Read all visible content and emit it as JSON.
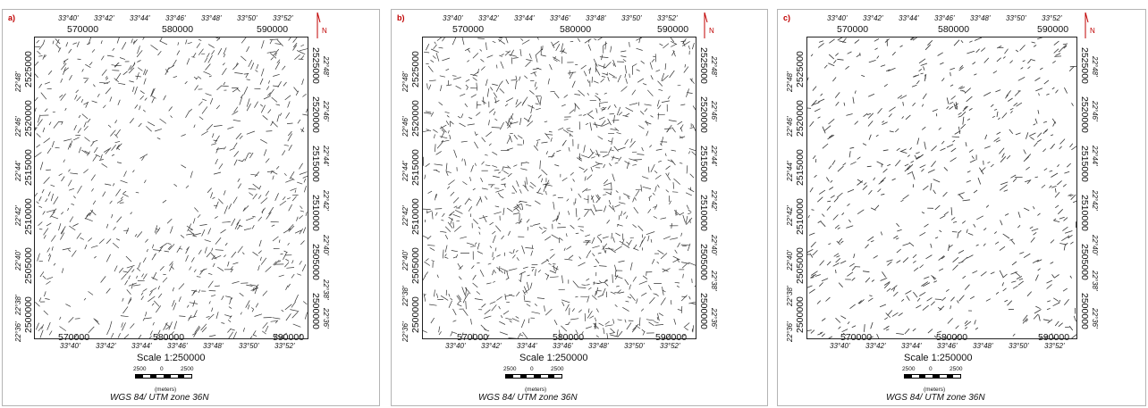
{
  "colors": {
    "frame": "#222222",
    "lineament": "#333333",
    "north_arrow": "#c00000",
    "panel_label": "#c00000"
  },
  "icons": {
    "north": "north-arrow-icon",
    "scale": "scale-bar-icon"
  },
  "panels": [
    {
      "label": "a)",
      "lon_ticks_top": [
        "33°40'",
        "33°42'",
        "33°44'",
        "33°46'",
        "33°48'",
        "33°50'",
        "33°52'"
      ],
      "lon_ticks_bottom": [
        "33°40'",
        "33°42'",
        "33°44'",
        "33°46'",
        "33°48'",
        "33°50'",
        "33°52'"
      ],
      "easting_ticks_top": [
        "570000",
        "580000",
        "590000"
      ],
      "easting_ticks_bottom": [
        "570000",
        "580000",
        "590000"
      ],
      "lat_ticks": [
        "22°48'",
        "22°46'",
        "22°44'",
        "22°42'",
        "22°40'",
        "22°38'",
        "22°36'"
      ],
      "northing_ticks": [
        "2525000",
        "2520000",
        "2515000",
        "2510000",
        "2505000",
        "2500000"
      ],
      "north_label": "N",
      "scale_text": "Scale 1:250000",
      "scalebar_labels": [
        "2500",
        "0",
        "2500"
      ],
      "units": "(meters)",
      "datum": "WGS 84/ UTM zone 36N"
    },
    {
      "label": "b)",
      "lon_ticks_top": [
        "33°40'",
        "33°42'",
        "33°44'",
        "33°46'",
        "33°48'",
        "33°50'",
        "33°52'"
      ],
      "lon_ticks_bottom": [
        "33°40'",
        "33°42'",
        "33°44'",
        "33°46'",
        "33°48'",
        "33°50'",
        "33°52'"
      ],
      "easting_ticks_top": [
        "570000",
        "580000",
        "590000"
      ],
      "easting_ticks_bottom": [
        "570000",
        "580000",
        "590000"
      ],
      "lat_ticks": [
        "22°48'",
        "22°46'",
        "22°44'",
        "22°42'",
        "22°40'",
        "22°38'",
        "22°36'"
      ],
      "northing_ticks": [
        "2525000",
        "2520000",
        "2515000",
        "2510000",
        "2505000",
        "2500000"
      ],
      "north_label": "N",
      "scale_text": "Scale 1:250000",
      "scalebar_labels": [
        "2500",
        "0",
        "2500"
      ],
      "units": "(meters)",
      "datum": "WGS 84/ UTM zone 36N"
    },
    {
      "label": "c)",
      "lon_ticks_top": [
        "33°40'",
        "33°42'",
        "33°44'",
        "33°46'",
        "33°48'",
        "33°50'",
        "33°52'"
      ],
      "lon_ticks_bottom": [
        "33°40'",
        "33°42'",
        "33°44'",
        "33°46'",
        "33°48'",
        "33°50'",
        "33°52'"
      ],
      "easting_ticks_top": [
        "570000",
        "580000",
        "590000"
      ],
      "easting_ticks_bottom": [
        "570000",
        "580000",
        "590000"
      ],
      "lat_ticks": [
        "22°48'",
        "22°46'",
        "22°44'",
        "22°42'",
        "22°40'",
        "22°38'",
        "22°36'"
      ],
      "northing_ticks": [
        "2525000",
        "2520000",
        "2515000",
        "2510000",
        "2505000",
        "2500000"
      ],
      "north_label": "N",
      "scale_text": "Scale 1:250000",
      "scalebar_labels": [
        "2500",
        "0",
        "2500"
      ],
      "units": "(meters)",
      "datum": "WGS 84/ UTM zone 36N"
    }
  ]
}
